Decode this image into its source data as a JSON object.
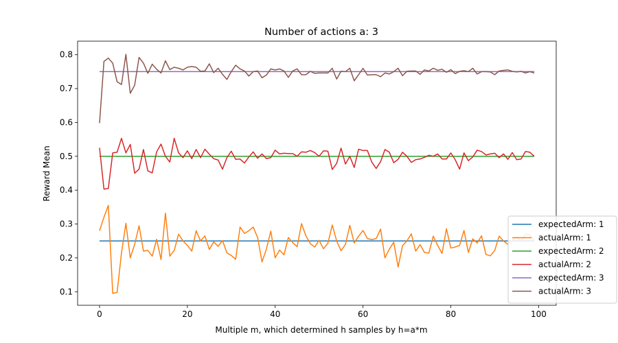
{
  "chart_data": {
    "type": "line",
    "title": "Number of actions a: 3",
    "xlabel": "Multiple m, which determined h samples by h=a*m",
    "ylabel": "Reward Mean",
    "xlim": [
      -5,
      104
    ],
    "ylim": [
      0.06,
      0.84
    ],
    "xticks": [
      0,
      20,
      40,
      60,
      80,
      100
    ],
    "xtick_labels": [
      "0",
      "20",
      "40",
      "60",
      "80",
      "100"
    ],
    "yticks": [
      0.1,
      0.2,
      0.3,
      0.4,
      0.5,
      0.6,
      0.7,
      0.8
    ],
    "ytick_labels": [
      "0.1",
      "0.2",
      "0.3",
      "0.4",
      "0.5",
      "0.6",
      "0.7",
      "0.8"
    ],
    "grid": false,
    "legend_position": "lower-right",
    "x_start": 0,
    "x_end": 99,
    "series": [
      {
        "name": "expectedArm: 1",
        "color": "#1f77b4",
        "constant": 0.25
      },
      {
        "name": "actualArm: 1",
        "color": "#ff7f0e",
        "values": [
          0.28,
          0.32,
          0.355,
          0.095,
          0.098,
          0.215,
          0.302,
          0.2,
          0.24,
          0.295,
          0.22,
          0.222,
          0.205,
          0.255,
          0.195,
          0.332,
          0.205,
          0.222,
          0.27,
          0.25,
          0.237,
          0.22,
          0.28,
          0.25,
          0.265,
          0.225,
          0.247,
          0.234,
          0.251,
          0.215,
          0.207,
          0.196,
          0.291,
          0.272,
          0.28,
          0.291,
          0.26,
          0.188,
          0.226,
          0.279,
          0.2,
          0.223,
          0.209,
          0.26,
          0.245,
          0.233,
          0.301,
          0.265,
          0.242,
          0.232,
          0.252,
          0.227,
          0.243,
          0.297,
          0.25,
          0.221,
          0.24,
          0.296,
          0.244,
          0.264,
          0.281,
          0.257,
          0.254,
          0.257,
          0.285,
          0.2,
          0.226,
          0.246,
          0.173,
          0.236,
          0.25,
          0.271,
          0.22,
          0.239,
          0.216,
          0.214,
          0.264,
          0.237,
          0.213,
          0.286,
          0.229,
          0.232,
          0.237,
          0.281,
          0.216,
          0.256,
          0.244,
          0.265,
          0.21,
          0.206,
          0.222,
          0.264,
          0.25,
          0.24,
          0.252,
          0.262,
          0.25,
          0.27,
          0.268,
          0.25
        ]
      },
      {
        "name": "expectedArm: 2",
        "color": "#2ca02c",
        "constant": 0.5
      },
      {
        "name": "actualArm: 2",
        "color": "#d62728",
        "values": [
          0.525,
          0.403,
          0.405,
          0.51,
          0.512,
          0.553,
          0.51,
          0.535,
          0.45,
          0.462,
          0.52,
          0.457,
          0.451,
          0.513,
          0.536,
          0.5,
          0.483,
          0.553,
          0.51,
          0.496,
          0.516,
          0.493,
          0.52,
          0.496,
          0.521,
          0.506,
          0.493,
          0.489,
          0.462,
          0.496,
          0.515,
          0.491,
          0.492,
          0.48,
          0.498,
          0.513,
          0.494,
          0.507,
          0.493,
          0.496,
          0.518,
          0.507,
          0.509,
          0.508,
          0.508,
          0.5,
          0.513,
          0.512,
          0.517,
          0.511,
          0.5,
          0.516,
          0.515,
          0.461,
          0.479,
          0.524,
          0.477,
          0.5,
          0.467,
          0.521,
          0.517,
          0.517,
          0.483,
          0.464,
          0.484,
          0.52,
          0.512,
          0.481,
          0.491,
          0.512,
          0.5,
          0.482,
          0.49,
          0.492,
          0.497,
          0.503,
          0.5,
          0.507,
          0.492,
          0.492,
          0.51,
          0.49,
          0.462,
          0.51,
          0.487,
          0.498,
          0.518,
          0.514,
          0.504,
          0.507,
          0.509,
          0.496,
          0.507,
          0.491,
          0.511,
          0.49,
          0.492,
          0.514,
          0.512,
          0.5
        ]
      },
      {
        "name": "expectedArm: 3",
        "color": "#9467bd",
        "constant": 0.75
      },
      {
        "name": "actualArm: 3",
        "color": "#8c564b",
        "values": [
          0.598,
          0.78,
          0.79,
          0.775,
          0.72,
          0.712,
          0.801,
          0.686,
          0.71,
          0.792,
          0.775,
          0.745,
          0.772,
          0.757,
          0.746,
          0.782,
          0.756,
          0.763,
          0.76,
          0.755,
          0.763,
          0.765,
          0.763,
          0.751,
          0.752,
          0.773,
          0.747,
          0.76,
          0.742,
          0.727,
          0.75,
          0.769,
          0.758,
          0.752,
          0.737,
          0.75,
          0.752,
          0.732,
          0.74,
          0.758,
          0.755,
          0.758,
          0.752,
          0.733,
          0.752,
          0.758,
          0.741,
          0.741,
          0.751,
          0.745,
          0.746,
          0.746,
          0.746,
          0.76,
          0.728,
          0.751,
          0.75,
          0.76,
          0.723,
          0.741,
          0.76,
          0.74,
          0.741,
          0.741,
          0.735,
          0.746,
          0.743,
          0.75,
          0.76,
          0.738,
          0.751,
          0.752,
          0.752,
          0.742,
          0.755,
          0.752,
          0.76,
          0.754,
          0.757,
          0.748,
          0.756,
          0.744,
          0.751,
          0.753,
          0.75,
          0.76,
          0.743,
          0.75,
          0.75,
          0.749,
          0.741,
          0.752,
          0.754,
          0.755,
          0.751,
          0.749,
          0.751,
          0.746,
          0.75,
          0.746
        ]
      }
    ]
  }
}
